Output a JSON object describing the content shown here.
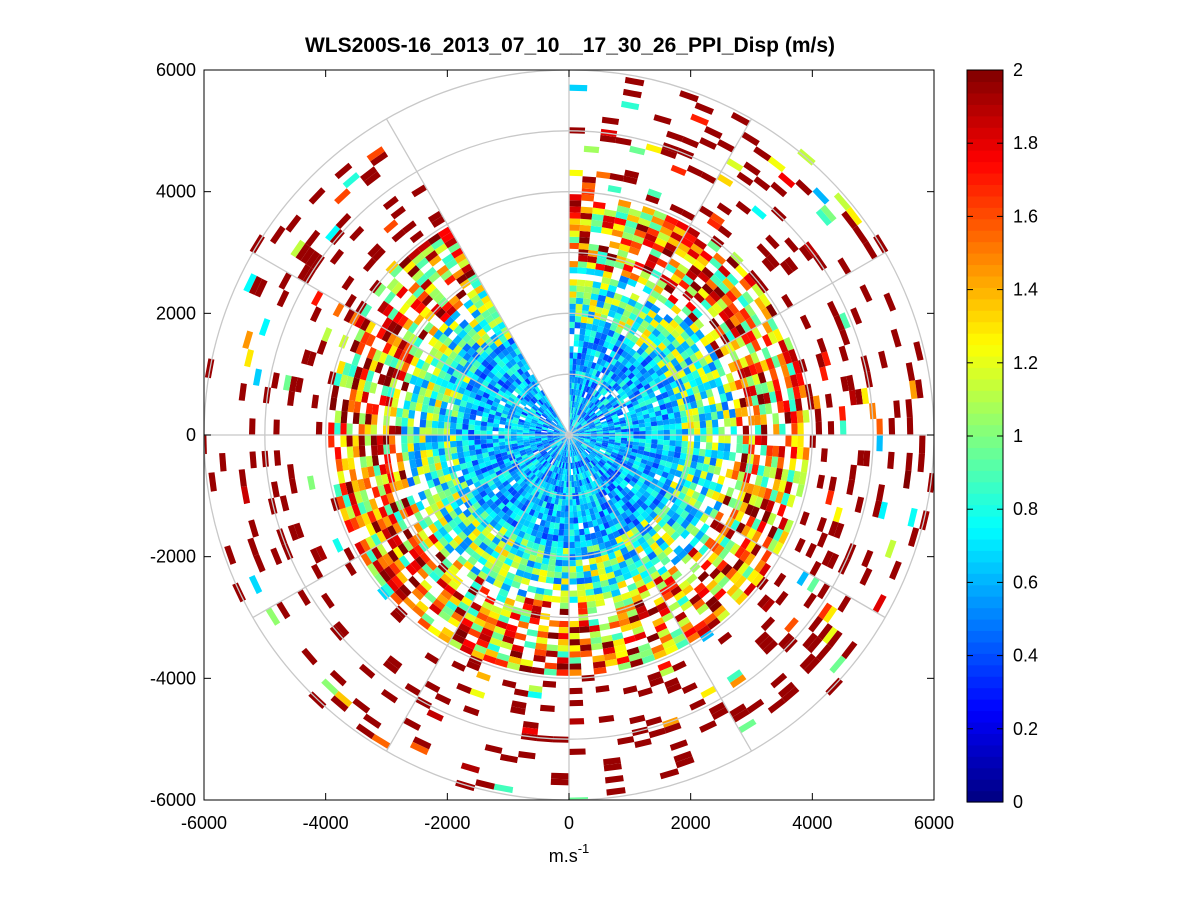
{
  "chart_data": {
    "type": "heatmap",
    "subtype": "polar-ppi",
    "title": "WLS200S-16_2013_07_10__17_30_26_PPI_Disp (m/s)",
    "xlabel": "m.s",
    "xlabel_superscript": "-1",
    "ylabel": "",
    "xlim": [
      -6000,
      6000
    ],
    "ylim": [
      -6000,
      6000
    ],
    "x_ticks": [
      -6000,
      -4000,
      -2000,
      0,
      2000,
      4000,
      6000
    ],
    "y_ticks": [
      6000,
      4000,
      2000,
      0,
      -2000,
      -4000,
      -6000
    ],
    "x_tick_labels": [
      "-6000",
      "-4000",
      "-2000",
      "0",
      "2000",
      "4000",
      "6000"
    ],
    "y_tick_labels": [
      "6000",
      "4000",
      "2000",
      "0",
      "-2000",
      "-4000",
      "-6000"
    ],
    "polar_grid": {
      "rings": [
        1000,
        2000,
        3000,
        4000,
        5000,
        6000
      ],
      "spokes_deg": [
        0,
        30,
        60,
        90,
        120,
        150,
        180,
        210,
        240,
        270,
        300,
        330
      ]
    },
    "colorbar": {
      "min": 0,
      "max": 2,
      "ticks": [
        0,
        0.2,
        0.4,
        0.6,
        0.8,
        1,
        1.2,
        1.4,
        1.6,
        1.8,
        2
      ],
      "tick_labels": [
        "0",
        "0.2",
        "0.4",
        "0.6",
        "0.8",
        "1",
        "1.2",
        "1.4",
        "1.6",
        "1.8",
        "2"
      ],
      "colormap": "jet"
    },
    "field_description": {
      "range_max_m": 6000,
      "gate_spacing_m": 100,
      "beam_spacing_deg": 3,
      "missing_sector_deg": [
        330,
        360
      ],
      "inner_disp_mean": 0.65,
      "outer_disp_mean": 1.9
    }
  },
  "colors": {
    "grid": "#c8c8c8",
    "axes": "#000000",
    "background": "#ffffff"
  }
}
